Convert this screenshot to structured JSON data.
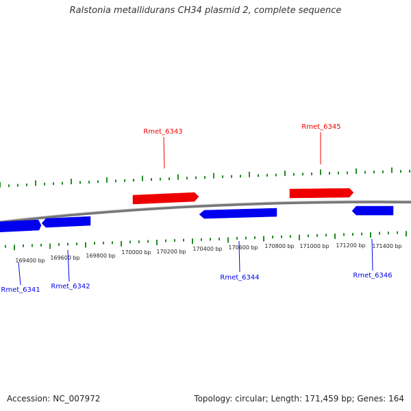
{
  "title": "Ralstonia metallidurans CH34 plasmid 2, complete sequence",
  "footer": {
    "accession": "Accession: NC_007972",
    "summary": "Topology: circular; Length: 171,459 bp; Genes: 164"
  },
  "colors": {
    "forward_gene": "#ee0000",
    "reverse_gene": "#0000ee",
    "backbone": "#888888",
    "ticks": "#228b22"
  },
  "ruler_labels": [
    "169400 bp",
    "169600 bp",
    "169800 bp",
    "170000 bp",
    "170200 bp",
    "170400 bp",
    "170600 bp",
    "170800 bp",
    "171000 bp",
    "171200 bp",
    "171400 bp"
  ],
  "genes": [
    {
      "name": "Rmet_6341",
      "strand": "reverse"
    },
    {
      "name": "Rmet_6342",
      "strand": "reverse"
    },
    {
      "name": "Rmet_6343",
      "strand": "forward"
    },
    {
      "name": "Rmet_6344",
      "strand": "reverse"
    },
    {
      "name": "Rmet_6345",
      "strand": "forward"
    },
    {
      "name": "Rmet_6346",
      "strand": "reverse"
    }
  ]
}
